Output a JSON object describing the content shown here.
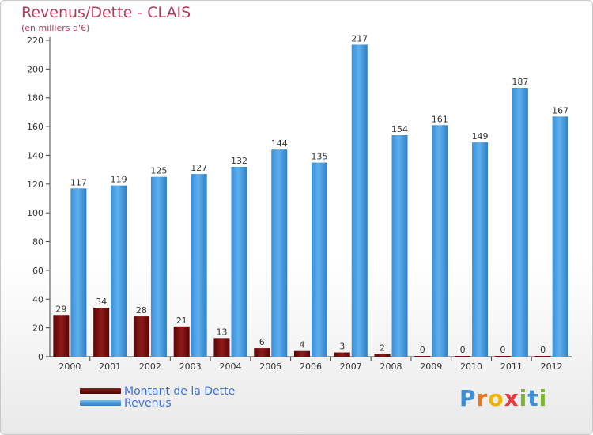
{
  "title": "Revenus/Dette - CLAIS",
  "subtitle": "(en milliers d'€)",
  "logo": {
    "letters": [
      "P",
      "r",
      "o",
      "x",
      "i",
      "t",
      "i"
    ],
    "colors": [
      "#3d8fd6",
      "#e8781e",
      "#f0b400",
      "#e03c3c",
      "#7ab530",
      "#3d8fd6",
      "#7ab530"
    ]
  },
  "chart_data": {
    "type": "bar",
    "title": "Revenus/Dette - CLAIS",
    "ylabel": "(en milliers d'€)",
    "categories": [
      "2000",
      "2001",
      "2002",
      "2003",
      "2004",
      "2005",
      "2006",
      "2007",
      "2008",
      "2009",
      "2010",
      "2011",
      "2012"
    ],
    "ylim": [
      0,
      220
    ],
    "yticks": [
      0,
      20,
      40,
      60,
      80,
      100,
      120,
      140,
      160,
      180,
      200,
      220
    ],
    "grid": false,
    "legend_position": "bottom-left",
    "series": [
      {
        "name": "Montant de la Dette",
        "color": "#7a0c0c",
        "values": [
          29,
          34,
          28,
          21,
          13,
          6,
          4,
          3,
          2,
          0,
          0,
          0,
          0
        ]
      },
      {
        "name": "Revenus",
        "color": "#4aa3e6",
        "values": [
          117,
          119,
          125,
          127,
          132,
          144,
          135,
          217,
          154,
          161,
          149,
          187,
          167
        ]
      }
    ]
  }
}
